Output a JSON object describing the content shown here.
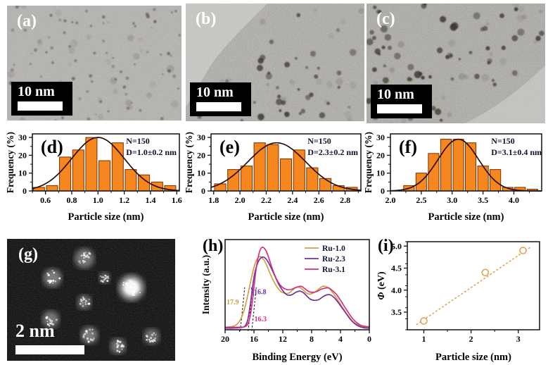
{
  "figure": {
    "background": "#ffffff",
    "description": "Nine-panel figure: TEM images, particle-size histograms, HAADF-STEM image, UPS spectra and work-function plot of Ru nanoclusters"
  },
  "panels": {
    "a": {
      "label": "(a)",
      "scalebar": "10 nm"
    },
    "b": {
      "label": "(b)",
      "scalebar": "10 nm"
    },
    "c": {
      "label": "(c)",
      "scalebar": "10 nm"
    },
    "d": {
      "label": "(d)",
      "stats": [
        "N=150",
        "D=1.0±0.2 nm"
      ]
    },
    "e": {
      "label": "(e)",
      "stats": [
        "N=150",
        "D=2.3±0.2 nm"
      ]
    },
    "f": {
      "label": "(f)",
      "stats": [
        "N=150",
        "D=3.1±0.4 nm"
      ]
    },
    "g": {
      "label": "(g)",
      "scalebar": "2 nm"
    },
    "h": {
      "label": "(h)"
    },
    "i": {
      "label": "(i)"
    }
  },
  "colors": {
    "bar_fill": "#F6871F",
    "bar_stroke": "#7A3000",
    "gauss_curve": "#2B0D05",
    "axis": "#111111",
    "stats_text": "#101028",
    "ru10": "#CFA13F",
    "ru23": "#7030A0",
    "ru31": "#D5317D",
    "scatter": "#E2A054"
  },
  "chart_data": [
    {
      "id": "d",
      "type": "bar",
      "xlabel": "Particle size (nm)",
      "ylabel": "Frequency (%)",
      "xlim": [
        0.5,
        1.62
      ],
      "ylim": [
        0,
        32
      ],
      "xticks": [
        0.6,
        0.8,
        1.0,
        1.2,
        1.4,
        1.6
      ],
      "yticks": [
        0,
        10,
        20,
        30
      ],
      "xminor": 0.1,
      "yminor": 5,
      "xtick_decimals": 1,
      "bin_width": 0.1,
      "categories": [
        0.55,
        0.65,
        0.75,
        0.85,
        0.95,
        1.05,
        1.15,
        1.25,
        1.35,
        1.45,
        1.55
      ],
      "values": [
        2,
        3,
        19,
        23,
        30,
        17,
        27,
        12,
        9,
        5,
        3
      ],
      "gaussian": {
        "mean": 1.0,
        "sd": 0.2,
        "amp": 30
      },
      "annotations": [
        "N=150",
        "D=1.0±0.2 nm"
      ]
    },
    {
      "id": "e",
      "type": "bar",
      "xlabel": "Particle size (nm)",
      "ylabel": "Frequency (%)",
      "xlim": [
        1.78,
        2.92
      ],
      "ylim": [
        0,
        32
      ],
      "xticks": [
        1.8,
        2.0,
        2.2,
        2.4,
        2.6,
        2.8
      ],
      "yticks": [
        0,
        10,
        20,
        30
      ],
      "xminor": 0.1,
      "yminor": 5,
      "xtick_decimals": 1,
      "bin_width": 0.1,
      "categories": [
        1.85,
        1.95,
        2.05,
        2.15,
        2.25,
        2.35,
        2.45,
        2.55,
        2.65,
        2.75,
        2.85
      ],
      "values": [
        4,
        12,
        14,
        27,
        26,
        18,
        23,
        13,
        7,
        3,
        2
      ],
      "gaussian": {
        "mean": 2.28,
        "sd": 0.22,
        "amp": 27
      },
      "annotations": [
        "N=150",
        "D=2.3±0.2 nm"
      ]
    },
    {
      "id": "f",
      "type": "bar",
      "xlabel": "Particle size (nm)",
      "ylabel": "Frequency (%)",
      "xlim": [
        2.0,
        4.45
      ],
      "ylim": [
        0,
        32
      ],
      "xticks": [
        2.0,
        2.5,
        3.0,
        3.5,
        4.0
      ],
      "yticks": [
        0,
        10,
        20,
        30
      ],
      "xminor": 0.25,
      "yminor": 5,
      "xtick_decimals": 1,
      "bin_width": 0.2,
      "categories": [
        2.3,
        2.5,
        2.7,
        2.9,
        3.1,
        3.3,
        3.5,
        3.7,
        3.9,
        4.1,
        4.3
      ],
      "values": [
        3,
        10,
        21,
        29,
        29,
        27,
        14,
        12,
        2,
        2,
        1
      ],
      "gaussian": {
        "mean": 3.1,
        "sd": 0.33,
        "amp": 29
      },
      "annotations": [
        "N=150",
        "D=3.1±0.4 nm"
      ]
    },
    {
      "id": "h",
      "type": "line",
      "xlabel": "Binding Energy (eV)",
      "ylabel": "Intensity (a.u.)",
      "xlim": [
        20,
        0
      ],
      "x_reversed": true,
      "xticks": [
        20,
        16,
        12,
        8,
        4,
        0
      ],
      "xminor": 2,
      "xtick_decimals": 0,
      "ylim": [
        0,
        1.06
      ],
      "legend_position": "top-right",
      "series": [
        {
          "name": "Ru-1.0",
          "color_key": "ru10",
          "cutoff": 17.9,
          "cutoff_label": "17.9",
          "x": [
            20,
            19.2,
            18.6,
            18.1,
            17.7,
            17.3,
            16.9,
            16.5,
            16.1,
            15.7,
            15.4,
            15.1,
            14.7,
            14.2,
            13.6,
            13.0,
            12.4,
            11.8,
            11.2,
            10.6,
            10.1,
            9.7,
            9.2,
            8.7,
            8.2,
            7.6,
            7.0,
            6.5,
            6.1,
            5.6,
            5.1,
            4.6,
            4.0,
            3.4,
            2.8,
            2.2,
            1.6,
            1.0,
            0.5,
            0
          ],
          "y": [
            0.03,
            0.035,
            0.05,
            0.09,
            0.15,
            0.25,
            0.39,
            0.55,
            0.7,
            0.81,
            0.85,
            0.86,
            0.83,
            0.75,
            0.63,
            0.53,
            0.46,
            0.43,
            0.43,
            0.47,
            0.5,
            0.5,
            0.47,
            0.43,
            0.42,
            0.44,
            0.48,
            0.51,
            0.51,
            0.49,
            0.44,
            0.38,
            0.3,
            0.22,
            0.15,
            0.09,
            0.06,
            0.04,
            0.03,
            0.03
          ]
        },
        {
          "name": "Ru-2.3",
          "color_key": "ru23",
          "cutoff": 16.8,
          "cutoff_label": "16.8",
          "x": [
            20,
            19,
            18,
            17.5,
            17.1,
            16.8,
            16.5,
            16.2,
            15.9,
            15.5,
            15.1,
            14.7,
            14.3,
            13.8,
            13.2,
            12.6,
            12.0,
            11.4,
            10.8,
            10.2,
            9.7,
            9.2,
            8.7,
            8.2,
            7.6,
            7.0,
            6.4,
            5.9,
            5.4,
            4.9,
            4.4,
            3.8,
            3.2,
            2.6,
            2.0,
            1.4,
            0.8,
            0.3,
            0
          ],
          "y": [
            0.02,
            0.02,
            0.025,
            0.03,
            0.06,
            0.14,
            0.3,
            0.5,
            0.66,
            0.78,
            0.84,
            0.855,
            0.83,
            0.76,
            0.65,
            0.54,
            0.46,
            0.41,
            0.41,
            0.44,
            0.455,
            0.44,
            0.4,
            0.36,
            0.345,
            0.355,
            0.39,
            0.41,
            0.41,
            0.38,
            0.33,
            0.26,
            0.19,
            0.12,
            0.07,
            0.04,
            0.025,
            0.02,
            0.02
          ]
        },
        {
          "name": "Ru-3.1",
          "color_key": "ru31",
          "cutoff": 16.3,
          "cutoff_label": "16.3",
          "x": [
            20,
            19,
            18,
            17.3,
            16.9,
            16.6,
            16.3,
            16.0,
            15.7,
            15.4,
            15.1,
            14.8,
            14.4,
            14.0,
            13.5,
            12.9,
            12.3,
            11.7,
            11.1,
            10.5,
            9.9,
            9.4,
            8.9,
            8.4,
            7.9,
            7.3,
            6.7,
            6.1,
            5.6,
            5.1,
            4.6,
            4.1,
            3.5,
            2.9,
            2.3,
            1.7,
            1.1,
            0.5,
            0
          ],
          "y": [
            0.03,
            0.03,
            0.03,
            0.035,
            0.06,
            0.13,
            0.28,
            0.5,
            0.71,
            0.86,
            0.945,
            0.97,
            0.94,
            0.86,
            0.73,
            0.6,
            0.52,
            0.48,
            0.47,
            0.485,
            0.505,
            0.51,
            0.48,
            0.45,
            0.44,
            0.45,
            0.475,
            0.49,
            0.49,
            0.46,
            0.42,
            0.36,
            0.28,
            0.2,
            0.13,
            0.08,
            0.05,
            0.04,
            0.035
          ]
        }
      ]
    },
    {
      "id": "i",
      "type": "scatter",
      "xlabel": "Particle size (nm)",
      "ylabel_symbol": "Φ",
      "ylabel_unit": " (eV)",
      "xlim": [
        0.65,
        3.45
      ],
      "ylim": [
        3.1,
        5.1
      ],
      "xticks": [
        1,
        2,
        3
      ],
      "yticks": [
        3.5,
        4.0,
        4.5,
        5.0
      ],
      "xminor": 0.5,
      "yminor": 0.25,
      "xtick_decimals": 0,
      "ytick_decimals": 1,
      "x": [
        1.0,
        2.3,
        3.1
      ],
      "y": [
        3.3,
        4.4,
        4.9
      ],
      "trendline": {
        "style": "dotted",
        "from": [
          0.85,
          3.22
        ],
        "to": [
          3.25,
          4.97
        ]
      }
    }
  ]
}
